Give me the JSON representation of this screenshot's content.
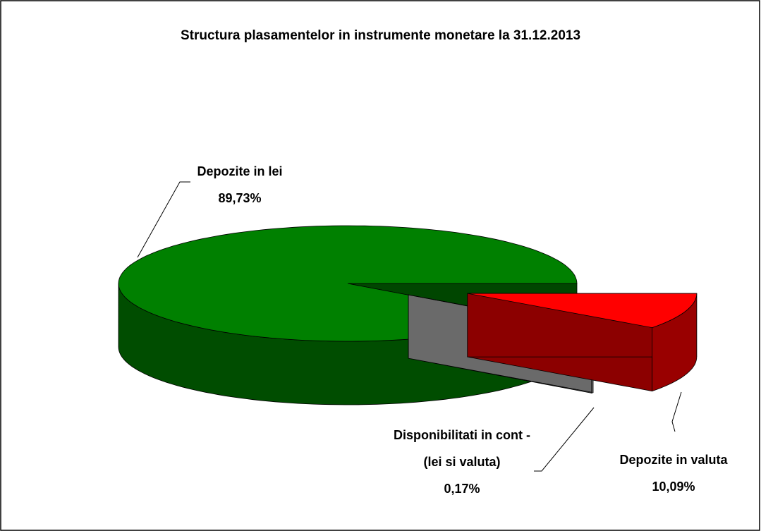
{
  "chart_data": {
    "type": "pie3d",
    "title": "Structura plasamentelor in instrumente monetare la 31.12.2013",
    "categories": [
      "Depozite in lei",
      "Disponibilitati in cont - (lei si valuta)",
      "Depozite in valuta"
    ],
    "values": [
      89.73,
      0.17,
      10.09
    ],
    "value_labels": [
      "89,73%",
      "0,17%",
      "10,09%"
    ],
    "colors": [
      "#008000",
      "#c0c0c0",
      "#ff0000"
    ]
  }
}
